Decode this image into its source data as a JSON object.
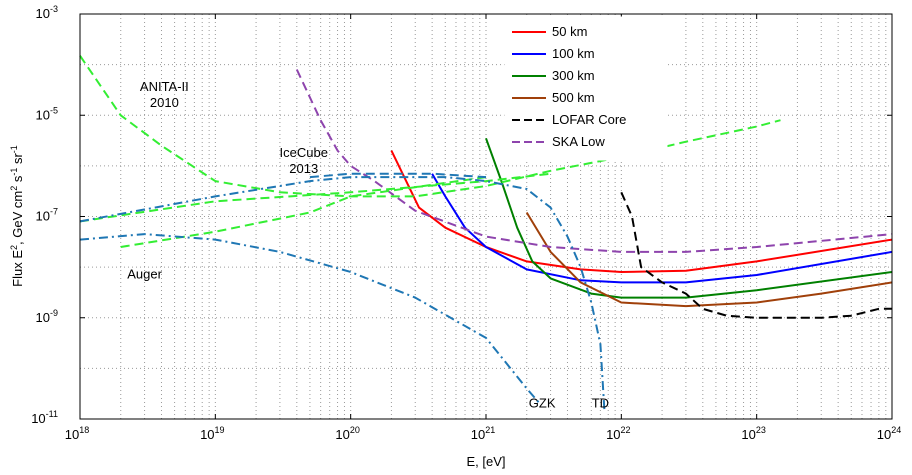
{
  "chart_data": {
    "type": "line",
    "xlabel": "E, [eV]",
    "ylabel": "Flux E^2, GeV cm^2 s^-1 sr^-1",
    "xscale": "log",
    "yscale": "log",
    "xlim": [
      1e+18,
      1e+24
    ],
    "ylim": [
      1e-11,
      0.001
    ],
    "grid": "dotted",
    "legend_position": "top-right",
    "x_ticks": [
      {
        "value": 1e+18,
        "base": "10",
        "exp": "18"
      },
      {
        "value": 1e+19,
        "base": "10",
        "exp": "19"
      },
      {
        "value": 1e+20,
        "base": "10",
        "exp": "20"
      },
      {
        "value": 1e+21,
        "base": "10",
        "exp": "21"
      },
      {
        "value": 1e+22,
        "base": "10",
        "exp": "22"
      },
      {
        "value": 1e+23,
        "base": "10",
        "exp": "23"
      },
      {
        "value": 1e+24,
        "base": "10",
        "exp": "24"
      }
    ],
    "y_ticks": [
      {
        "value": 1e-11,
        "base": "10",
        "exp": "-11"
      },
      {
        "value": 1e-09,
        "base": "10",
        "exp": "-9"
      },
      {
        "value": 1e-07,
        "base": "10",
        "exp": "-7"
      },
      {
        "value": 1e-05,
        "base": "10",
        "exp": "-5"
      },
      {
        "value": 0.001,
        "base": "10",
        "exp": "-3"
      }
    ],
    "series": [
      {
        "name": "50 km",
        "color": "#ff0000",
        "style": "solid",
        "legend": true,
        "points": [
          [
            2e+20,
            2e-06
          ],
          [
            3.2e+20,
            1.5e-07
          ],
          [
            5e+20,
            6e-08
          ],
          [
            1e+21,
            2.5e-08
          ],
          [
            2e+21,
            1.3e-08
          ],
          [
            5e+21,
            9e-09
          ],
          [
            1e+22,
            8e-09
          ],
          [
            3e+22,
            8.5e-09
          ],
          [
            1e+23,
            1.3e-08
          ],
          [
            1e+24,
            3.5e-08
          ]
        ]
      },
      {
        "name": "100 km",
        "color": "#0000ff",
        "style": "solid",
        "legend": true,
        "points": [
          [
            4e+20,
            7e-07
          ],
          [
            5e+20,
            2.5e-07
          ],
          [
            7e+20,
            6e-08
          ],
          [
            1e+21,
            2.5e-08
          ],
          [
            2e+21,
            9e-09
          ],
          [
            5e+21,
            5.5e-09
          ],
          [
            1e+22,
            5e-09
          ],
          [
            3e+22,
            5e-09
          ],
          [
            1e+23,
            7e-09
          ],
          [
            1e+24,
            2e-08
          ]
        ]
      },
      {
        "name": "300 km",
        "color": "#008000",
        "style": "solid",
        "legend": true,
        "points": [
          [
            1e+21,
            3.5e-06
          ],
          [
            1.3e+21,
            5e-07
          ],
          [
            1.7e+21,
            6e-08
          ],
          [
            2.2e+21,
            1.3e-08
          ],
          [
            3e+21,
            6e-09
          ],
          [
            6e+21,
            3e-09
          ],
          [
            1e+22,
            2.5e-09
          ],
          [
            3e+22,
            2.5e-09
          ],
          [
            1e+23,
            3.5e-09
          ],
          [
            1e+24,
            8e-09
          ]
        ]
      },
      {
        "name": "500 km",
        "color": "#a0400a",
        "style": "solid",
        "legend": true,
        "points": [
          [
            2e+21,
            1.2e-07
          ],
          [
            3e+21,
            2e-08
          ],
          [
            5e+21,
            5e-09
          ],
          [
            1e+22,
            2e-09
          ],
          [
            3e+22,
            1.7e-09
          ],
          [
            1e+23,
            2e-09
          ],
          [
            3e+23,
            3e-09
          ],
          [
            1e+24,
            5e-09
          ]
        ]
      },
      {
        "name": "LOFAR Core",
        "color": "#000000",
        "style": "dash",
        "legend": true,
        "points": [
          [
            1e+22,
            3e-07
          ],
          [
            1.2e+22,
            1e-07
          ],
          [
            1.4e+22,
            1e-08
          ],
          [
            2e+22,
            5e-09
          ],
          [
            3e+22,
            3e-09
          ],
          [
            4e+22,
            1.5e-09
          ],
          [
            6e+22,
            1.1e-09
          ],
          [
            1e+23,
            1e-09
          ],
          [
            3e+23,
            1e-09
          ],
          [
            5e+23,
            1.1e-09
          ],
          [
            8e+23,
            1.5e-09
          ],
          [
            1e+24,
            1.5e-09
          ]
        ]
      },
      {
        "name": "SKA Low",
        "color": "#8e44ad",
        "style": "dash",
        "legend": true,
        "points": [
          [
            4e+19,
            8e-05
          ],
          [
            6e+19,
            8e-06
          ],
          [
            8e+19,
            2e-06
          ],
          [
            1e+20,
            1e-06
          ],
          [
            1.5e+20,
            5e-07
          ],
          [
            3e+20,
            1.3e-07
          ],
          [
            1e+21,
            4e-08
          ],
          [
            3e+21,
            2.5e-08
          ],
          [
            1e+22,
            2e-08
          ],
          [
            3e+22,
            2e-08
          ],
          [
            1e+23,
            2.5e-08
          ],
          [
            1e+24,
            4.5e-08
          ]
        ]
      },
      {
        "name": "",
        "color": "#33ee33",
        "style": "dash",
        "legend": false,
        "points": [
          [
            1e+18,
            0.00015
          ],
          [
            2e+18,
            1e-05
          ],
          [
            4e+18,
            2.5e-06
          ],
          [
            1e+19,
            5e-07
          ],
          [
            3e+19,
            3e-07
          ],
          [
            1e+20,
            2.5e-07
          ],
          [
            3e+20,
            2.5e-07
          ],
          [
            1e+21,
            4e-07
          ],
          [
            3e+21,
            8e-07
          ],
          [
            1e+22,
            1.5e-06
          ],
          [
            3e+22,
            3e-06
          ],
          [
            1e+23,
            6e-06
          ],
          [
            1.5e+23,
            8e-06
          ]
        ]
      },
      {
        "name": "",
        "color": "#33ee33",
        "style": "dash",
        "legend": false,
        "points": [
          [
            2e+18,
            2.5e-08
          ],
          [
            1e+19,
            5e-08
          ],
          [
            5e+19,
            1.2e-07
          ],
          [
            1e+20,
            2.5e-07
          ],
          [
            1e+21,
            6e-07
          ]
        ]
      },
      {
        "name": "",
        "color": "#33ee33",
        "style": "dash",
        "legend": false,
        "points": [
          [
            1e+18,
            8e-08
          ],
          [
            1e+19,
            2e-07
          ],
          [
            1e+20,
            3e-07
          ],
          [
            1e+21,
            5e-07
          ],
          [
            3e+21,
            7e-07
          ]
        ]
      },
      {
        "name": "",
        "color": "#1f77b4",
        "style": "dashdot",
        "legend": false,
        "points": [
          [
            1e+18,
            3.5e-08
          ],
          [
            3e+18,
            4.5e-08
          ],
          [
            1e+19,
            3.5e-08
          ],
          [
            3e+19,
            2e-08
          ],
          [
            1e+20,
            8e-09
          ],
          [
            3e+20,
            2.5e-09
          ],
          [
            1e+21,
            4e-10
          ],
          [
            2e+21,
            4e-11
          ],
          [
            2.5e+21,
            2e-11
          ]
        ]
      },
      {
        "name": "",
        "color": "#1f77b4",
        "style": "dashdot",
        "legend": false,
        "points": [
          [
            1e+18,
            8e-08
          ],
          [
            1e+19,
            2.5e-07
          ],
          [
            5e+19,
            5e-07
          ],
          [
            1e+20,
            6e-07
          ],
          [
            5e+20,
            6e-07
          ],
          [
            1e+21,
            5e-07
          ],
          [
            2e+21,
            3.5e-07
          ],
          [
            3e+21,
            1.5e-07
          ],
          [
            4e+21,
            4e-08
          ],
          [
            5e+21,
            1e-08
          ],
          [
            6e+21,
            2e-09
          ],
          [
            7e+21,
            3e-10
          ],
          [
            7.5e+21,
            1.5e-11
          ]
        ]
      },
      {
        "name": "",
        "color": "#1f77b4",
        "style": "dash",
        "legend": false,
        "points": [
          [
            5e+19,
            6e-07
          ],
          [
            1e+20,
            7e-07
          ],
          [
            4e+20,
            7e-07
          ],
          [
            1e+21,
            6e-07
          ]
        ]
      }
    ],
    "annotations": [
      {
        "id": "anita",
        "lines": [
          "ANITA-II",
          "2010"
        ],
        "x": 4.2e+18,
        "y": 3e-05
      },
      {
        "id": "icecube",
        "lines": [
          "IceCube",
          "2013"
        ],
        "x": 4.5e+19,
        "y": 1.5e-06
      },
      {
        "id": "auger",
        "lines": [
          "Auger"
        ],
        "x": 3e+18,
        "y": 6e-09
      },
      {
        "id": "gzk",
        "lines": [
          "GZK"
        ],
        "x": 2.6e+21,
        "y": 1.7e-11
      },
      {
        "id": "td",
        "lines": [
          "TD"
        ],
        "x": 7e+21,
        "y": 1.7e-11
      }
    ]
  }
}
